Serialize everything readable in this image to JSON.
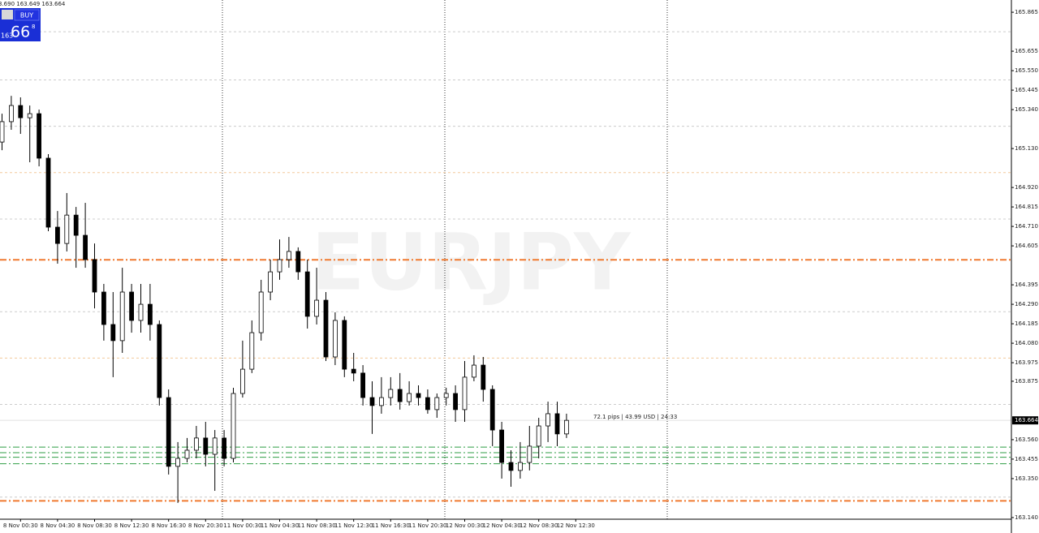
{
  "chart_data": {
    "type": "candlestick",
    "symbol": "EURJPY",
    "ohlc_header": "3.690 163.649 163.664",
    "trade_panel": {
      "button": "BUY",
      "price_prefix": "163",
      "price_big": "66",
      "price_sup": "8"
    },
    "annotation": "72.1 pips | 43.99 USD | 24:33",
    "current_price": 163.664,
    "categories": [
      null,
      null,
      "8 Nov 00:30",
      null,
      null,
      null,
      "8 Nov 04:30",
      null,
      null,
      null,
      "8 Nov 08:30",
      null,
      null,
      null,
      "8 Nov 12:30",
      null,
      null,
      null,
      "8 Nov 16:30",
      null,
      null,
      null,
      "8 Nov 20:30",
      null,
      null,
      null,
      "11 Nov 00:30",
      null,
      null,
      null,
      "11 Nov 04:30",
      null,
      null,
      null,
      "11 Nov 08:30",
      null,
      null,
      null,
      "11 Nov 12:30",
      null,
      null,
      null,
      "11 Nov 16:30",
      null,
      null,
      null,
      "11 Nov 20:30",
      null,
      null,
      null,
      "12 Nov 00:30",
      null,
      null,
      null,
      "12 Nov 04:30",
      null,
      null,
      null,
      "12 Nov 08:30",
      null,
      null,
      null,
      "12 Nov 12:30"
    ],
    "open": [
      165.165,
      165.275,
      165.362,
      165.296,
      165.318,
      165.078,
      164.706,
      164.618,
      164.771,
      164.662,
      164.531,
      164.356,
      164.181,
      164.094,
      164.356,
      164.203,
      164.29,
      164.181,
      163.787,
      163.416,
      163.459,
      163.503,
      163.569,
      163.481,
      163.569,
      163.459,
      163.809,
      163.94,
      164.137,
      164.356,
      164.465,
      164.531,
      164.575,
      164.465,
      164.225,
      164.312,
      164.006,
      164.203,
      163.94,
      163.919,
      163.787,
      163.744,
      163.787,
      163.831,
      163.765,
      163.809,
      163.787,
      163.722,
      163.787,
      163.809,
      163.722,
      163.897,
      163.962,
      163.831,
      163.612,
      163.437,
      163.394,
      163.437,
      163.525,
      163.634,
      163.7,
      163.591,
      null
    ],
    "high": [
      165.318,
      165.414,
      165.406,
      165.362,
      165.34,
      165.1,
      164.793,
      164.89,
      164.815,
      164.837,
      164.618,
      164.4,
      164.356,
      164.487,
      164.4,
      164.4,
      164.4,
      164.203,
      163.831,
      163.547,
      163.569,
      163.634,
      163.656,
      163.612,
      163.612,
      163.84,
      164.094,
      164.203,
      164.422,
      164.531,
      164.64,
      164.653,
      164.597,
      164.531,
      164.487,
      164.356,
      164.247,
      164.225,
      164.028,
      163.962,
      163.875,
      163.897,
      163.897,
      163.919,
      163.875,
      163.853,
      163.831,
      163.809,
      163.84,
      163.853,
      163.984,
      164.015,
      164.006,
      163.853,
      163.656,
      163.503,
      163.547,
      163.634,
      163.678,
      163.765,
      163.765,
      163.7,
      null
    ],
    "low": [
      165.121,
      165.231,
      165.209,
      165.056,
      165.034,
      164.684,
      164.509,
      164.575,
      164.487,
      164.487,
      164.268,
      164.094,
      163.897,
      164.028,
      164.137,
      164.137,
      164.094,
      163.744,
      163.372,
      163.219,
      163.437,
      163.459,
      163.416,
      163.284,
      163.416,
      163.437,
      163.787,
      163.919,
      164.094,
      164.312,
      164.422,
      164.487,
      164.422,
      164.159,
      164.181,
      163.984,
      163.962,
      163.897,
      163.875,
      163.744,
      163.591,
      163.7,
      163.744,
      163.722,
      163.744,
      163.744,
      163.7,
      163.678,
      163.744,
      163.656,
      163.656,
      163.875,
      163.765,
      163.525,
      163.35,
      163.306,
      163.35,
      163.394,
      163.459,
      163.547,
      163.525,
      163.569,
      null
    ],
    "close": [
      165.275,
      165.362,
      165.296,
      165.318,
      165.078,
      164.706,
      164.618,
      164.771,
      164.662,
      164.531,
      164.356,
      164.181,
      164.094,
      164.356,
      164.203,
      164.29,
      164.181,
      163.787,
      163.416,
      163.459,
      163.503,
      163.569,
      163.481,
      163.569,
      163.459,
      163.809,
      163.94,
      164.137,
      164.356,
      164.465,
      164.531,
      164.575,
      164.465,
      164.225,
      164.312,
      164.006,
      164.203,
      163.94,
      163.919,
      163.787,
      163.744,
      163.787,
      163.831,
      163.765,
      163.809,
      163.787,
      163.722,
      163.787,
      163.809,
      163.722,
      163.897,
      163.962,
      163.831,
      163.612,
      163.437,
      163.394,
      163.437,
      163.525,
      163.634,
      163.7,
      163.591,
      163.664,
      null
    ],
    "up_color": "#ffffff",
    "down_color": "#000000",
    "outline_color": "#000000",
    "ylim": [
      163.131,
      165.931
    ],
    "yticks": [
      165.865,
      165.655,
      {
        "value": 165.55,
        "label": "165.550"
      },
      165.445,
      {
        "value": 165.34,
        "label": "165.340"
      },
      {
        "value": 165.13,
        "label": "165.130"
      },
      {
        "value": 164.92,
        "label": "164.920"
      },
      164.815,
      {
        "value": 164.71,
        "label": "164.710"
      },
      164.605,
      164.395,
      {
        "value": 164.29,
        "label": "164.290"
      },
      164.185,
      {
        "value": 164.08,
        "label": "164.080"
      },
      163.975,
      163.875,
      {
        "value": 163.56,
        "label": "163.560"
      },
      163.455,
      {
        "value": 163.35,
        "label": "163.350"
      },
      {
        "value": 163.14,
        "label": "163.140"
      }
    ],
    "levels": [
      {
        "value": 165.76,
        "color": "#cccccc",
        "style": "dash"
      },
      {
        "value": 165.5,
        "color": "#cccccc",
        "style": "dash"
      },
      {
        "value": 165.25,
        "color": "#cccccc",
        "style": "dash"
      },
      {
        "value": 165.0,
        "color": "#f3c99a",
        "style": "dash"
      },
      {
        "value": 164.75,
        "color": "#cccccc",
        "style": "dash"
      },
      {
        "value": 164.53,
        "color": "#f07a30",
        "style": "dashdot"
      },
      {
        "value": 164.25,
        "color": "#cccccc",
        "style": "dash"
      },
      {
        "value": 164.0,
        "color": "#f3c99a",
        "style": "dash"
      },
      {
        "value": 163.75,
        "color": "#cccccc",
        "style": "dash"
      },
      {
        "value": 163.52,
        "color": "#2f9e44",
        "style": "dashdot"
      },
      {
        "value": 163.49,
        "color": "#2f9e44",
        "style": "dashdot"
      },
      {
        "value": 163.465,
        "color": "#2f9e44",
        "style": "dashdot"
      },
      {
        "value": 163.43,
        "color": "#2f9e44",
        "style": "dashdot"
      },
      {
        "value": 163.25,
        "color": "#cccccc",
        "style": "dash"
      },
      {
        "value": 163.23,
        "color": "#f07a30",
        "style": "dashdot"
      }
    ]
  }
}
